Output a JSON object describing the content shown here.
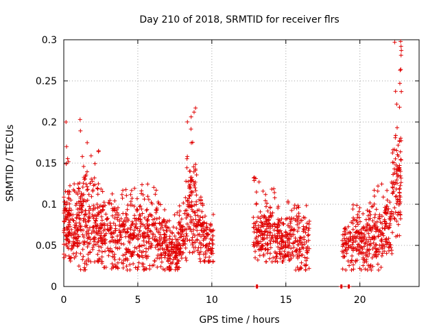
{
  "chart_data": {
    "type": "scatter",
    "title": "Day 210 of 2018, SRMTID for receiver flrs",
    "xlabel": "GPS time / hours",
    "ylabel": "SRMTID / TECUs",
    "xlim": [
      0,
      24
    ],
    "ylim": [
      0,
      0.3
    ],
    "xticks": [
      0,
      5,
      10,
      15,
      20
    ],
    "yticks": [
      0,
      0.05,
      0.1,
      0.15,
      0.2,
      0.25,
      0.3
    ],
    "grid": true,
    "marker": "+",
    "series": [
      {
        "color": "#e00000",
        "segments": [
          {
            "x0": 0.0,
            "x1": 0.5,
            "min": 0.03,
            "max": 0.2,
            "base": 0.075,
            "n": 90
          },
          {
            "x0": 0.5,
            "x1": 1.0,
            "min": 0.03,
            "max": 0.13,
            "base": 0.065,
            "n": 60
          },
          {
            "x0": 1.0,
            "x1": 1.6,
            "min": 0.02,
            "max": 0.2,
            "base": 0.085,
            "n": 90
          },
          {
            "x0": 1.6,
            "x1": 2.5,
            "min": 0.03,
            "max": 0.165,
            "base": 0.08,
            "n": 110
          },
          {
            "x0": 2.5,
            "x1": 3.5,
            "min": 0.02,
            "max": 0.12,
            "base": 0.065,
            "n": 110
          },
          {
            "x0": 3.5,
            "x1": 4.5,
            "min": 0.02,
            "max": 0.12,
            "base": 0.06,
            "n": 100
          },
          {
            "x0": 4.5,
            "x1": 5.5,
            "min": 0.02,
            "max": 0.125,
            "base": 0.065,
            "n": 110
          },
          {
            "x0": 5.5,
            "x1": 6.5,
            "min": 0.02,
            "max": 0.125,
            "base": 0.065,
            "n": 100
          },
          {
            "x0": 6.5,
            "x1": 7.0,
            "min": 0.02,
            "max": 0.1,
            "base": 0.055,
            "n": 60
          },
          {
            "x0": 7.0,
            "x1": 7.8,
            "min": 0.02,
            "max": 0.095,
            "base": 0.045,
            "n": 100
          },
          {
            "x0": 7.8,
            "x1": 8.3,
            "min": 0.025,
            "max": 0.13,
            "base": 0.06,
            "n": 60
          },
          {
            "x0": 8.3,
            "x1": 9.0,
            "min": 0.04,
            "max": 0.215,
            "base": 0.1,
            "n": 100
          },
          {
            "x0": 9.0,
            "x1": 9.5,
            "min": 0.03,
            "max": 0.12,
            "base": 0.07,
            "n": 60
          },
          {
            "x0": 9.5,
            "x1": 10.1,
            "min": 0.03,
            "max": 0.1,
            "base": 0.055,
            "n": 60
          },
          {
            "x0": 12.8,
            "x1": 13.5,
            "min": 0.03,
            "max": 0.135,
            "base": 0.065,
            "n": 80
          },
          {
            "x0": 13.5,
            "x1": 14.5,
            "min": 0.03,
            "max": 0.12,
            "base": 0.065,
            "n": 110
          },
          {
            "x0": 14.5,
            "x1": 15.5,
            "min": 0.03,
            "max": 0.105,
            "base": 0.06,
            "n": 100
          },
          {
            "x0": 15.5,
            "x1": 16.6,
            "min": 0.02,
            "max": 0.1,
            "base": 0.06,
            "n": 100
          },
          {
            "x0": 18.8,
            "x1": 19.5,
            "min": 0.02,
            "max": 0.08,
            "base": 0.05,
            "n": 60
          },
          {
            "x0": 19.5,
            "x1": 20.5,
            "min": 0.02,
            "max": 0.1,
            "base": 0.055,
            "n": 110
          },
          {
            "x0": 20.5,
            "x1": 21.5,
            "min": 0.02,
            "max": 0.125,
            "base": 0.06,
            "n": 110
          },
          {
            "x0": 21.5,
            "x1": 22.2,
            "min": 0.04,
            "max": 0.13,
            "base": 0.075,
            "n": 70
          },
          {
            "x0": 22.2,
            "x1": 22.8,
            "min": 0.06,
            "max": 0.3,
            "base": 0.13,
            "n": 90
          }
        ],
        "spikes": [
          {
            "x": 0.15,
            "y": 0.2
          },
          {
            "x": 1.1,
            "y": 0.203
          },
          {
            "x": 2.35,
            "y": 0.165
          },
          {
            "x": 8.9,
            "y": 0.217
          },
          {
            "x": 8.8,
            "y": 0.212
          },
          {
            "x": 22.75,
            "y": 0.298
          },
          {
            "x": 22.78,
            "y": 0.292
          },
          {
            "x": 22.8,
            "y": 0.287
          },
          {
            "x": 22.72,
            "y": 0.263
          },
          {
            "x": 22.76,
            "y": 0.264
          },
          {
            "x": 22.7,
            "y": 0.247
          },
          {
            "x": 22.8,
            "y": 0.237
          },
          {
            "x": 22.68,
            "y": 0.218
          }
        ],
        "zeros": [
          13.05,
          18.75,
          19.25
        ]
      }
    ]
  }
}
